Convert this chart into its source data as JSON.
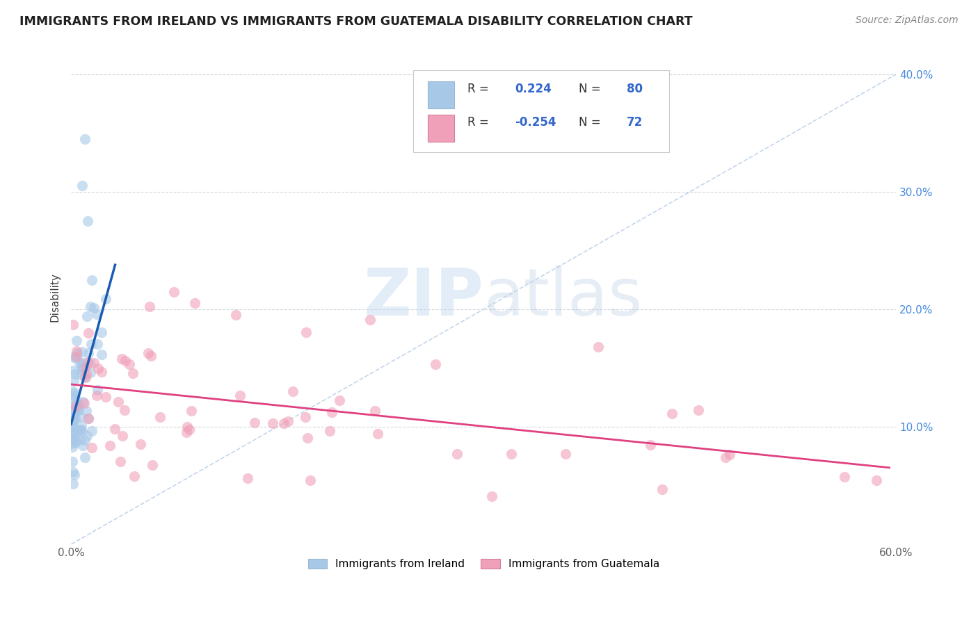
{
  "title": "IMMIGRANTS FROM IRELAND VS IMMIGRANTS FROM GUATEMALA DISABILITY CORRELATION CHART",
  "source": "Source: ZipAtlas.com",
  "ylabel": "Disability",
  "xlim": [
    0.0,
    0.6
  ],
  "ylim": [
    0.0,
    0.42
  ],
  "ireland_R": 0.224,
  "ireland_N": 80,
  "guatemala_R": -0.254,
  "guatemala_N": 72,
  "ireland_color": "#a8c8e8",
  "guatemala_color": "#f0a0b8",
  "ireland_line_color": "#1a5cb0",
  "guatemala_line_color": "#e04080",
  "diagonal_color": "#b8cfe8",
  "background_color": "#ffffff",
  "grid_color": "#d0d8e0",
  "title_color": "#202020",
  "legend_color": "#3366cc",
  "ytick_color": "#4488dd",
  "xtick_color": "#606060"
}
